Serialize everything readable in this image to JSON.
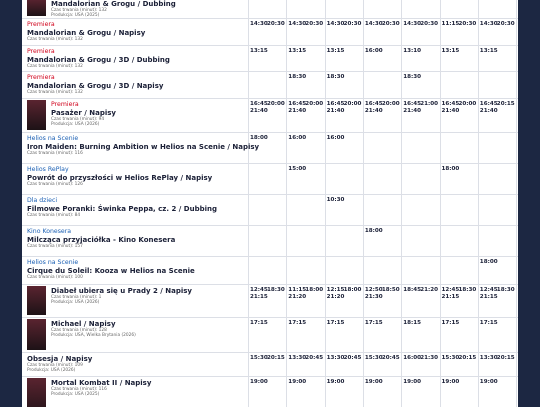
{
  "rows": [
    {
      "tag": null,
      "title": "Mandalorian & Grogu / Dubbing",
      "duration": "Czas trwania (minut): 132",
      "production": "Produkcja: USA (2025)",
      "poster": true,
      "times": [
        [],
        [],
        [],
        [],
        [],
        [],
        []
      ]
    },
    {
      "tag": "Premiera",
      "title": "Mandalorian & Grogu / Napisy",
      "duration": "Czas trwania (minut): 132",
      "production": null,
      "poster": false,
      "times": [
        [
          "14:30",
          "20:30"
        ],
        [
          "14:30",
          "20:30"
        ],
        [
          "14:30",
          "20:30"
        ],
        [
          "14:30",
          "20:30"
        ],
        [
          "14:30",
          "20:30"
        ],
        [
          "11:15",
          "20:30"
        ],
        [
          "14:30",
          "20:30"
        ]
      ]
    },
    {
      "tag": "Premiera",
      "title": "Mandalorian & Grogu / 3D / Dubbing",
      "duration": "Czas trwania (minut): 132",
      "production": null,
      "poster": false,
      "times": [
        [
          "13:15"
        ],
        [
          "13:15"
        ],
        [
          "13:15"
        ],
        [
          "16:00"
        ],
        [
          "13:10"
        ],
        [
          "13:15"
        ],
        [
          "13:15"
        ]
      ]
    },
    {
      "tag": "Premiera",
      "title": "Mandalorian & Grogu / 3D / Napisy",
      "duration": "Czas trwania (minut): 132",
      "production": null,
      "poster": false,
      "times": [
        [],
        [
          "18:30"
        ],
        [
          "18:30"
        ],
        [],
        [
          "18:30"
        ],
        [],
        []
      ]
    },
    {
      "tag": "Premiera",
      "title": "Pasażer / Napisy",
      "duration": "Czas trwania (minut): 94",
      "production": "Produkcja: USA (2026)",
      "poster": true,
      "times": [
        [
          "16:45",
          "20:00",
          "21:40"
        ],
        [
          "16:45",
          "20:00",
          "21:40"
        ],
        [
          "16:45",
          "20:00",
          "21:40"
        ],
        [
          "16:45",
          "20:00",
          "21:40"
        ],
        [
          "16:45",
          "21:00",
          "21:40"
        ],
        [
          "16:45",
          "20:00",
          "21:40"
        ],
        [
          "16:45",
          "20:15",
          "21:40"
        ]
      ]
    },
    {
      "tag": "Helios na Scenie",
      "title": "Iron Maiden: Burning Ambition w Helios na Scenie / Napisy",
      "duration": "Czas trwania (minut): 116",
      "production": null,
      "poster": false,
      "times": [
        [
          "18:00"
        ],
        [
          "16:00"
        ],
        [
          "16:00"
        ],
        [],
        [],
        [],
        []
      ]
    },
    {
      "tag": "Helios RePlay",
      "title": "Powrót do przyszłości w Helios RePlay / Napisy",
      "duration": "Czas trwania (minut): 126",
      "production": null,
      "poster": false,
      "times": [
        [],
        [
          "15:00"
        ],
        [],
        [],
        [],
        [
          "18:00"
        ],
        []
      ]
    },
    {
      "tag": "Dla dzieci",
      "title": "Filmowe Poranki: Świnka Peppa, cz. 2 / Dubbing",
      "duration": "Czas trwania (minut): 84",
      "production": null,
      "poster": false,
      "times": [
        [],
        [],
        [
          "10:30"
        ],
        [],
        [],
        [],
        []
      ]
    },
    {
      "tag": "Kino Konesera",
      "title": "Milcząca przyjaciółka - Kino Konesera",
      "duration": "Czas trwania (minut): 157",
      "production": null,
      "poster": false,
      "times": [
        [],
        [],
        [],
        [
          "18:00"
        ],
        [],
        [],
        []
      ]
    },
    {
      "tag": "Helios na Scenie",
      "title": "Cirque du Soleil: Kooza w Helios na Scenie",
      "duration": "Czas trwania (minut): 100",
      "production": null,
      "poster": false,
      "times": [
        [],
        [],
        [],
        [],
        [],
        [],
        [
          "18:00"
        ]
      ]
    },
    {
      "tag": null,
      "title": "Diabeł ubiera się u Prady 2 / Napisy",
      "duration": "Czas trwania (minut): 1",
      "production": "Produkcja: USA (2026)",
      "poster": true,
      "times": [
        [
          "12:45",
          "18:30",
          "21:15"
        ],
        [
          "11:15",
          "18:00",
          "21:20"
        ],
        [
          "12:15",
          "18:00",
          "21:20"
        ],
        [
          "12:50",
          "18:50",
          "21:30"
        ],
        [
          "18:45",
          "21:20"
        ],
        [
          "12:45",
          "18:30",
          "21:15"
        ],
        [
          "12:45",
          "18:30",
          "21:15"
        ]
      ]
    },
    {
      "tag": null,
      "title": "Michael / Napisy",
      "duration": "Czas trwania (minut): 128",
      "production": "Produkcja: USA, Wielka Brytania (2026)",
      "poster": true,
      "times": [
        [
          "17:15"
        ],
        [
          "17:15"
        ],
        [
          "17:15"
        ],
        [
          "17:15"
        ],
        [
          "18:15"
        ],
        [
          "17:15"
        ],
        [
          "17:15"
        ]
      ]
    },
    {
      "tag": null,
      "title": "Obsesja / Napisy",
      "duration": "Czas trwania (minut): 109",
      "production": "Produkcja: USA (2026)",
      "poster": false,
      "times": [
        [
          "15:30",
          "20:15"
        ],
        [
          "13:30",
          "20:45"
        ],
        [
          "13:30",
          "20:45"
        ],
        [
          "15:30",
          "20:45"
        ],
        [
          "16:00",
          "21:30"
        ],
        [
          "15:30",
          "20:15"
        ],
        [
          "13:30",
          "20:15"
        ]
      ]
    },
    {
      "tag": null,
      "title": "Mortal Kombat II / Napisy",
      "duration": "Czas trwania (minut): 116",
      "production": "Produkcja: USA (2025)",
      "poster": true,
      "times": [
        [
          "19:00"
        ],
        [
          "19:00"
        ],
        [
          "19:00"
        ],
        [
          "19:00"
        ],
        [
          "19:00"
        ],
        [
          "19:00"
        ],
        [
          "19:00"
        ]
      ]
    }
  ]
}
